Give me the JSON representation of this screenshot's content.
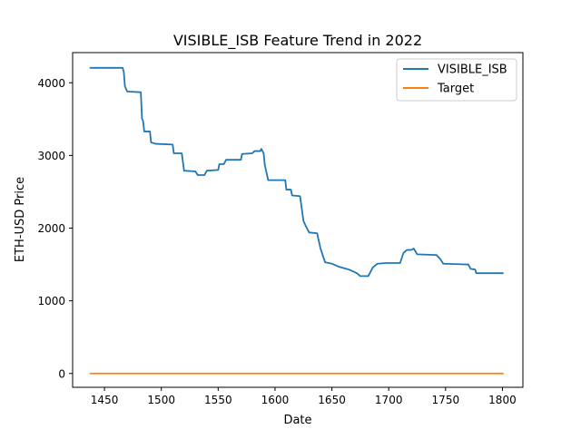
{
  "chart_data": {
    "type": "line",
    "title": "VISIBLE_ISB Feature Trend in 2022",
    "xlabel": "Date",
    "ylabel": "ETH-USD Price",
    "xlim": [
      1422,
      1818
    ],
    "ylim": [
      -190,
      4415
    ],
    "x_ticks": [
      1450,
      1500,
      1550,
      1600,
      1650,
      1700,
      1750,
      1800
    ],
    "y_ticks": [
      0,
      1000,
      2000,
      3000,
      4000
    ],
    "grid": false,
    "legend": {
      "position": "top-right",
      "entries": [
        "VISIBLE_ISB",
        "Target"
      ]
    },
    "series": [
      {
        "name": "VISIBLE_ISB",
        "color": "#1f77b4",
        "points": [
          [
            1437,
            4205
          ],
          [
            1466,
            4205
          ],
          [
            1467,
            4150
          ],
          [
            1468,
            3950
          ],
          [
            1470,
            3880
          ],
          [
            1482,
            3870
          ],
          [
            1483,
            3510
          ],
          [
            1484,
            3470
          ],
          [
            1485,
            3330
          ],
          [
            1490,
            3330
          ],
          [
            1491,
            3180
          ],
          [
            1495,
            3160
          ],
          [
            1510,
            3150
          ],
          [
            1511,
            3030
          ],
          [
            1518,
            3030
          ],
          [
            1520,
            2790
          ],
          [
            1530,
            2780
          ],
          [
            1532,
            2730
          ],
          [
            1538,
            2730
          ],
          [
            1540,
            2790
          ],
          [
            1550,
            2800
          ],
          [
            1551,
            2880
          ],
          [
            1555,
            2880
          ],
          [
            1557,
            2940
          ],
          [
            1570,
            2940
          ],
          [
            1571,
            3020
          ],
          [
            1580,
            3030
          ],
          [
            1582,
            3060
          ],
          [
            1587,
            3060
          ],
          [
            1588,
            3090
          ],
          [
            1590,
            3030
          ],
          [
            1591,
            2870
          ],
          [
            1594,
            2660
          ],
          [
            1609,
            2660
          ],
          [
            1610,
            2530
          ],
          [
            1614,
            2530
          ],
          [
            1615,
            2450
          ],
          [
            1622,
            2440
          ],
          [
            1623,
            2330
          ],
          [
            1625,
            2100
          ],
          [
            1627,
            2030
          ],
          [
            1630,
            1940
          ],
          [
            1637,
            1930
          ],
          [
            1640,
            1720
          ],
          [
            1644,
            1530
          ],
          [
            1650,
            1510
          ],
          [
            1656,
            1470
          ],
          [
            1665,
            1430
          ],
          [
            1672,
            1380
          ],
          [
            1675,
            1340
          ],
          [
            1682,
            1340
          ],
          [
            1686,
            1460
          ],
          [
            1690,
            1510
          ],
          [
            1698,
            1520
          ],
          [
            1710,
            1520
          ],
          [
            1713,
            1660
          ],
          [
            1716,
            1700
          ],
          [
            1720,
            1700
          ],
          [
            1722,
            1720
          ],
          [
            1725,
            1640
          ],
          [
            1742,
            1630
          ],
          [
            1745,
            1580
          ],
          [
            1748,
            1510
          ],
          [
            1770,
            1500
          ],
          [
            1772,
            1440
          ],
          [
            1776,
            1430
          ],
          [
            1777,
            1380
          ],
          [
            1801,
            1380
          ]
        ]
      },
      {
        "name": "Target",
        "color": "#ff7f0e",
        "points": [
          [
            1437,
            0
          ],
          [
            1801,
            0
          ]
        ]
      }
    ]
  }
}
